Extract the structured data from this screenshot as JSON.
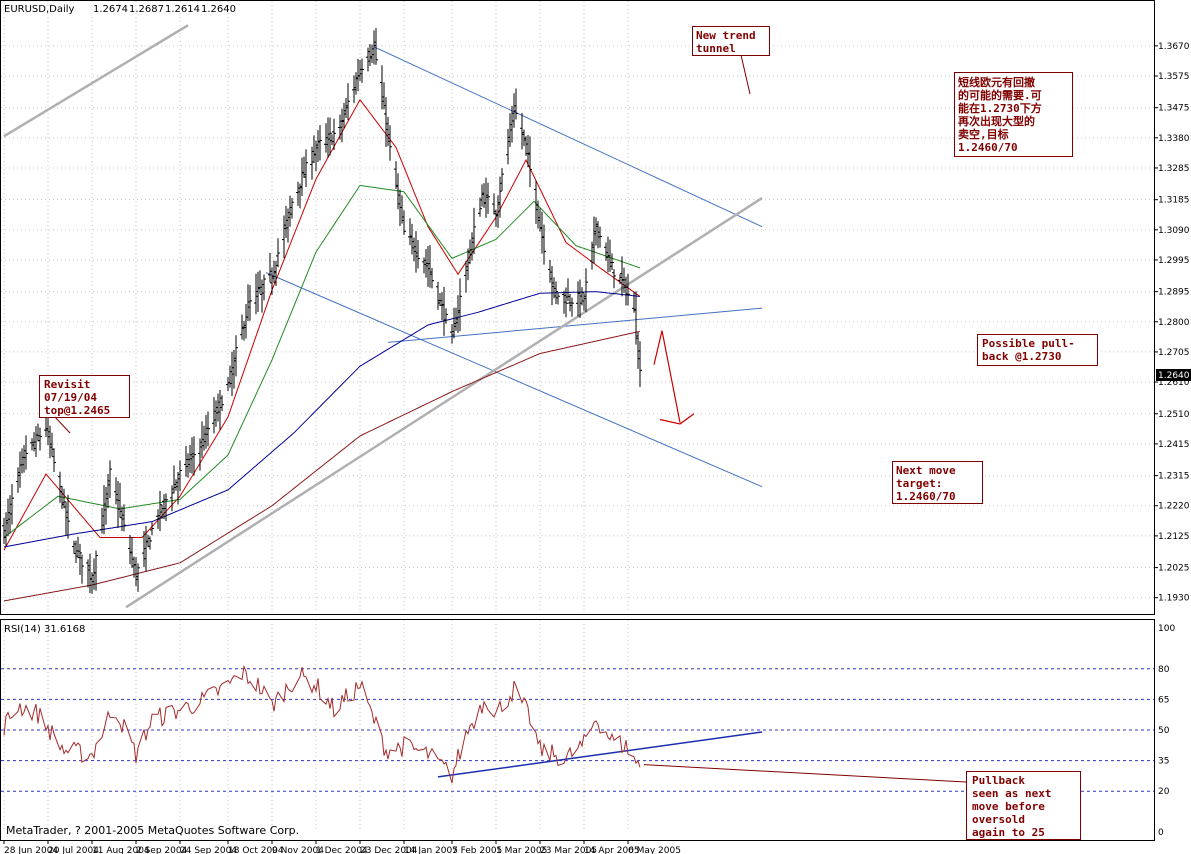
{
  "chart_data": [
    {
      "type": "line",
      "subtype": "ohlc-daily-price-chart",
      "title": "EURUSD,Daily",
      "ohlc": {
        "open": "1.2674",
        "high": "1.2687",
        "low": "1.2614",
        "close": "1.2640"
      },
      "ylim": [
        1.1885,
        1.372
      ],
      "y_ticks": [
        "1.3670",
        "1.3575",
        "1.3475",
        "1.3380",
        "1.3285",
        "1.3185",
        "1.3090",
        "1.2995",
        "1.2895",
        "1.2800",
        "1.2705",
        "1.2610",
        "1.2510",
        "1.2415",
        "1.2315",
        "1.2220",
        "1.2125",
        "1.2025",
        "1.1930"
      ],
      "current_price_label": "1.2640",
      "x_tick_labels": [
        "28 Jun 2004",
        "20 Jul 2004",
        "11 Aug 2004",
        "2 Sep 2004",
        "24 Sep 2004",
        "18 Oct 2004",
        "9 Nov 2004",
        "1 Dec 2004",
        "23 Dec 2004",
        "14 Jan 2005",
        "7 Feb 2005",
        "1 Mar 2005",
        "23 Mar 2005",
        "14 Apr 2005",
        "6 May 2005"
      ],
      "grid": "dotted",
      "price_anchors": [
        {
          "date": "2004-06-28",
          "value": 1.214
        },
        {
          "date": "2004-07-08",
          "value": 1.238
        },
        {
          "date": "2004-07-19",
          "value": 1.2465
        },
        {
          "date": "2004-08-01",
          "value": 1.21
        },
        {
          "date": "2004-08-11",
          "value": 1.199
        },
        {
          "date": "2004-08-20",
          "value": 1.232
        },
        {
          "date": "2004-09-02",
          "value": 1.2
        },
        {
          "date": "2004-09-12",
          "value": 1.218
        },
        {
          "date": "2004-09-24",
          "value": 1.232
        },
        {
          "date": "2004-10-05",
          "value": 1.242
        },
        {
          "date": "2004-10-18",
          "value": 1.26
        },
        {
          "date": "2004-10-28",
          "value": 1.285
        },
        {
          "date": "2004-11-09",
          "value": 1.295
        },
        {
          "date": "2004-11-20",
          "value": 1.32
        },
        {
          "date": "2004-12-01",
          "value": 1.335
        },
        {
          "date": "2004-12-12",
          "value": 1.34
        },
        {
          "date": "2004-12-23",
          "value": 1.36
        },
        {
          "date": "2004-12-30",
          "value": 1.3667
        },
        {
          "date": "2005-01-08",
          "value": 1.33
        },
        {
          "date": "2005-01-14",
          "value": 1.308
        },
        {
          "date": "2005-01-26",
          "value": 1.297
        },
        {
          "date": "2005-02-07",
          "value": 1.275
        },
        {
          "date": "2005-02-15",
          "value": 1.3
        },
        {
          "date": "2005-02-22",
          "value": 1.32
        },
        {
          "date": "2005-03-01",
          "value": 1.315
        },
        {
          "date": "2005-03-10",
          "value": 1.3475
        },
        {
          "date": "2005-03-16",
          "value": 1.335
        },
        {
          "date": "2005-03-23",
          "value": 1.31
        },
        {
          "date": "2005-03-30",
          "value": 1.289
        },
        {
          "date": "2005-04-07",
          "value": 1.287
        },
        {
          "date": "2005-04-14",
          "value": 1.2875
        },
        {
          "date": "2005-04-20",
          "value": 1.3105
        },
        {
          "date": "2005-04-27",
          "value": 1.298
        },
        {
          "date": "2005-05-05",
          "value": 1.2905
        },
        {
          "date": "2005-05-09",
          "value": 1.283
        },
        {
          "date": "2005-05-12",
          "value": 1.264
        }
      ],
      "moving_averages": [
        {
          "color": "#cc0000",
          "anchors": [
            {
              "date": "2004-06-28",
              "value": 1.208
            },
            {
              "date": "2004-07-19",
              "value": 1.232
            },
            {
              "date": "2004-08-15",
              "value": 1.212
            },
            {
              "date": "2004-09-05",
              "value": 1.212
            },
            {
              "date": "2004-09-24",
              "value": 1.225
            },
            {
              "date": "2004-10-18",
              "value": 1.25
            },
            {
              "date": "2004-11-09",
              "value": 1.29
            },
            {
              "date": "2004-12-01",
              "value": 1.325
            },
            {
              "date": "2004-12-23",
              "value": 1.35
            },
            {
              "date": "2005-01-10",
              "value": 1.335
            },
            {
              "date": "2005-01-26",
              "value": 1.31
            },
            {
              "date": "2005-02-10",
              "value": 1.295
            },
            {
              "date": "2005-03-01",
              "value": 1.313
            },
            {
              "date": "2005-03-16",
              "value": 1.331
            },
            {
              "date": "2005-04-05",
              "value": 1.305
            },
            {
              "date": "2005-04-22",
              "value": 1.297
            },
            {
              "date": "2005-05-12",
              "value": 1.288
            }
          ]
        },
        {
          "color": "#228b22",
          "anchors": [
            {
              "date": "2004-06-28",
              "value": 1.212
            },
            {
              "date": "2004-07-25",
              "value": 1.225
            },
            {
              "date": "2004-08-25",
              "value": 1.221
            },
            {
              "date": "2004-09-24",
              "value": 1.224
            },
            {
              "date": "2004-10-18",
              "value": 1.238
            },
            {
              "date": "2004-11-09",
              "value": 1.268
            },
            {
              "date": "2004-12-01",
              "value": 1.302
            },
            {
              "date": "2004-12-23",
              "value": 1.323
            },
            {
              "date": "2005-01-14",
              "value": 1.321
            },
            {
              "date": "2005-02-07",
              "value": 1.3
            },
            {
              "date": "2005-03-01",
              "value": 1.306
            },
            {
              "date": "2005-03-20",
              "value": 1.318
            },
            {
              "date": "2005-04-10",
              "value": 1.304
            },
            {
              "date": "2005-05-12",
              "value": 1.297
            }
          ]
        },
        {
          "color": "#000099",
          "anchors": [
            {
              "date": "2004-06-28",
              "value": 1.209
            },
            {
              "date": "2004-08-01",
              "value": 1.213
            },
            {
              "date": "2004-09-10",
              "value": 1.217
            },
            {
              "date": "2004-10-18",
              "value": 1.227
            },
            {
              "date": "2004-11-20",
              "value": 1.245
            },
            {
              "date": "2004-12-23",
              "value": 1.266
            },
            {
              "date": "2005-01-26",
              "value": 1.279
            },
            {
              "date": "2005-02-20",
              "value": 1.283
            },
            {
              "date": "2005-03-23",
              "value": 1.289
            },
            {
              "date": "2005-04-20",
              "value": 1.2895
            },
            {
              "date": "2005-05-12",
              "value": 1.288
            }
          ]
        },
        {
          "color": "#8b1a1a",
          "anchors": [
            {
              "date": "2004-06-28",
              "value": 1.192
            },
            {
              "date": "2004-08-11",
              "value": 1.197
            },
            {
              "date": "2004-09-24",
              "value": 1.204
            },
            {
              "date": "2004-11-09",
              "value": 1.222
            },
            {
              "date": "2004-12-23",
              "value": 1.244
            },
            {
              "date": "2005-02-07",
              "value": 1.258
            },
            {
              "date": "2005-03-23",
              "value": 1.27
            },
            {
              "date": "2005-05-12",
              "value": 1.277
            }
          ]
        }
      ]
    },
    {
      "type": "line",
      "subtype": "rsi-indicator",
      "title": "RSI(14) 31.6168",
      "ylim": [
        0,
        100
      ],
      "y_ticks": [
        "100",
        "80",
        "65",
        "50",
        "35",
        "20",
        "0"
      ],
      "levels": [
        80,
        65,
        50,
        35,
        20
      ],
      "anchors": [
        {
          "date": "2004-06-28",
          "value": 52
        },
        {
          "date": "2004-07-05",
          "value": 62
        },
        {
          "date": "2004-07-15",
          "value": 58
        },
        {
          "date": "2004-07-28",
          "value": 40
        },
        {
          "date": "2004-08-11",
          "value": 38
        },
        {
          "date": "2004-08-22",
          "value": 62
        },
        {
          "date": "2004-09-02",
          "value": 38
        },
        {
          "date": "2004-09-10",
          "value": 55
        },
        {
          "date": "2004-09-24",
          "value": 60
        },
        {
          "date": "2004-10-05",
          "value": 64
        },
        {
          "date": "2004-10-18",
          "value": 72
        },
        {
          "date": "2004-10-25",
          "value": 78
        },
        {
          "date": "2004-11-02",
          "value": 72
        },
        {
          "date": "2004-11-09",
          "value": 62
        },
        {
          "date": "2004-11-22",
          "value": 77
        },
        {
          "date": "2004-12-01",
          "value": 72
        },
        {
          "date": "2004-12-10",
          "value": 60
        },
        {
          "date": "2004-12-23",
          "value": 72
        },
        {
          "date": "2005-01-05",
          "value": 40
        },
        {
          "date": "2005-01-14",
          "value": 42
        },
        {
          "date": "2005-01-26",
          "value": 38
        },
        {
          "date": "2005-02-07",
          "value": 28
        },
        {
          "date": "2005-02-15",
          "value": 50
        },
        {
          "date": "2005-02-24",
          "value": 66
        },
        {
          "date": "2005-03-01",
          "value": 58
        },
        {
          "date": "2005-03-10",
          "value": 70
        },
        {
          "date": "2005-03-18",
          "value": 56
        },
        {
          "date": "2005-03-23",
          "value": 40
        },
        {
          "date": "2005-04-05",
          "value": 36
        },
        {
          "date": "2005-04-14",
          "value": 43
        },
        {
          "date": "2005-04-20",
          "value": 56
        },
        {
          "date": "2005-04-28",
          "value": 45
        },
        {
          "date": "2005-05-05",
          "value": 42
        },
        {
          "date": "2005-05-12",
          "value": 31.6
        }
      ]
    }
  ],
  "drawn_objects": {
    "trendlines": [
      {
        "color": "#4472c4",
        "from": {
          "date": "2004-12-30",
          "value": 1.3667
        },
        "to": {
          "date": "2005-07-12",
          "value": 1.31
        }
      },
      {
        "color": "#4472c4",
        "from": {
          "date": "2004-11-06",
          "value": 1.2955
        },
        "to": {
          "date": "2005-07-12",
          "value": 1.228
        }
      },
      {
        "color": "#4472c4",
        "from": {
          "date": "2005-01-06",
          "value": 1.2735
        },
        "to": {
          "date": "2005-07-12",
          "value": 1.2843
        }
      },
      {
        "color": "#b0b0b0",
        "from": {
          "date": "2004-08-28",
          "value": 1.19
        },
        "to": {
          "date": "2005-07-12",
          "value": 1.319
        }
      },
      {
        "color": "#b0b0b0",
        "from": {
          "date": "2004-06-28",
          "value": 1.3385
        },
        "to": {
          "date": "2004-09-28",
          "value": 1.3735
        }
      }
    ],
    "rsi_trendline": {
      "from": {
        "date": "2005-01-31",
        "value": 27
      },
      "to": {
        "date": "2005-07-12",
        "value": 49
      }
    },
    "projection_color": "#cc0000"
  },
  "annotations": {
    "revisit": [
      "Revisit",
      "07/19/04",
      "top@1.2465"
    ],
    "new_trend": [
      "New trend",
      "tunnel"
    ],
    "chinese": [
      "短线欧元有回撤",
      "的可能的需要.可",
      "能在1.2730下方",
      "再次出现大型的",
      "卖空,目标",
      "1.2460/70"
    ],
    "pullback_price": [
      "Possible pull-",
      "back @1.2730"
    ],
    "next_move": [
      "Next move",
      "target:",
      "1.2460/70"
    ],
    "rsi_note": [
      "Pullback",
      "seen as next",
      "move before",
      "oversold",
      "again to 25"
    ]
  },
  "footer": {
    "copyright": "MetaTrader, ? 2001-2005 MetaQuotes Software Corp."
  }
}
